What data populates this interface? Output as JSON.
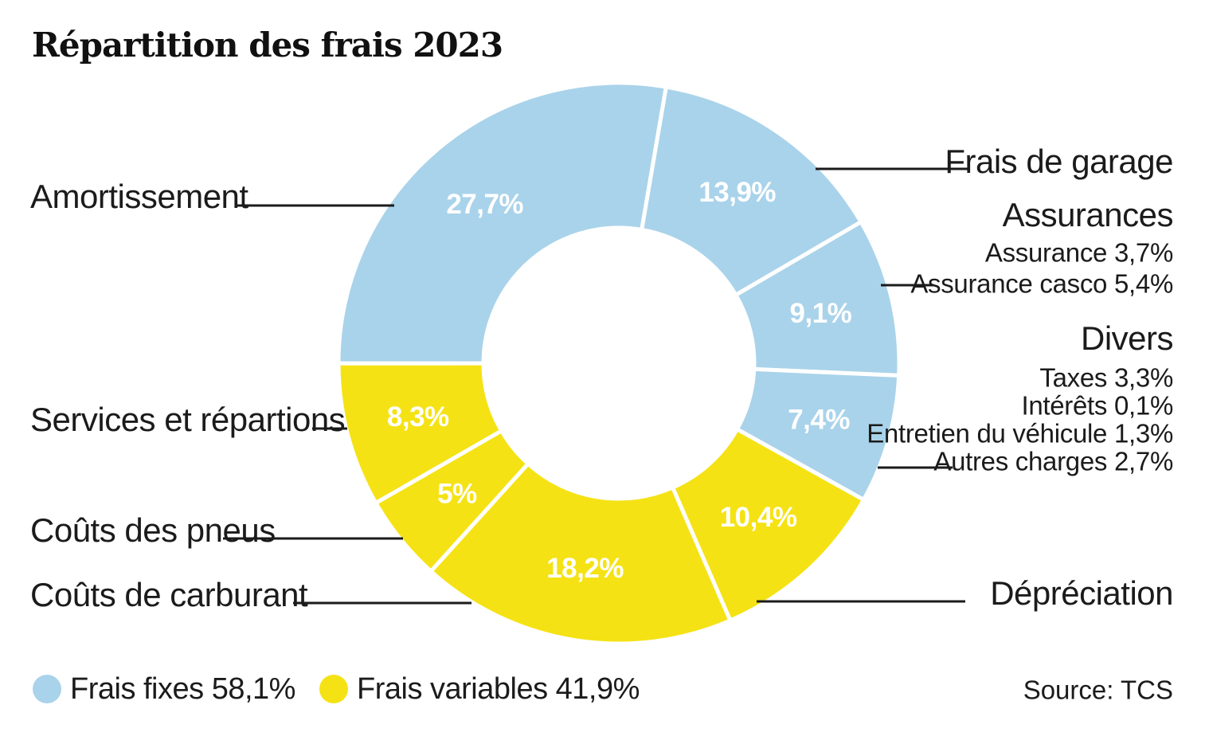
{
  "title": "Répartition des frais 2023",
  "source": "Source: TCS",
  "colors": {
    "fixed": "#A9D3EA",
    "variable": "#F5E214",
    "text": "#1B1B1B",
    "leader_line": "#1B1B1B",
    "value_label": "#FFFFFF"
  },
  "chart_data": {
    "type": "pie",
    "variant": "donut",
    "title": "Répartition des frais 2023",
    "start_angle_deg": 9.7,
    "direction": "clockwise",
    "legend_position": "bottom-left",
    "groups": [
      {
        "id": "fixed",
        "label": "Frais fixes 58,1%",
        "total_pct": 58.1,
        "color": "#A9D3EA"
      },
      {
        "id": "variable",
        "label": "Frais variables 41,9%",
        "total_pct": 41.9,
        "color": "#F5E214"
      }
    ],
    "segments": [
      {
        "label": "Frais de garage",
        "value_pct": 13.9,
        "value_label": "13,9%",
        "group": "fixed"
      },
      {
        "label": "Assurances",
        "value_pct": 9.1,
        "value_label": "9,1%",
        "group": "fixed",
        "breakdown": [
          "Assurance 3,7%",
          "Assurance casco 5,4%"
        ]
      },
      {
        "label": "Divers",
        "value_pct": 7.4,
        "value_label": "7,4%",
        "group": "fixed",
        "breakdown": [
          "Taxes 3,3%",
          "Intérêts 0,1%",
          "Entretien du véhicule 1,3%",
          "Autres charges 2,7%"
        ]
      },
      {
        "label": "Dépréciation",
        "value_pct": 10.4,
        "value_label": "10,4%",
        "group": "variable"
      },
      {
        "label": "Coûts de carburant",
        "value_pct": 18.2,
        "value_label": "18,2%",
        "group": "variable"
      },
      {
        "label": "Coûts des pneus",
        "value_pct": 5,
        "value_label": "5%",
        "group": "variable"
      },
      {
        "label": "Services et répartions",
        "value_pct": 8.3,
        "value_label": "8,3%",
        "group": "variable"
      },
      {
        "label": "Amortissement",
        "value_pct": 27.7,
        "value_label": "27,7%",
        "group": "fixed"
      }
    ]
  }
}
